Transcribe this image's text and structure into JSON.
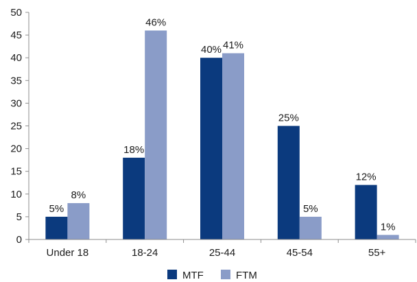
{
  "chart_data": {
    "type": "bar",
    "categories": [
      "Under 18",
      "18-24",
      "25-44",
      "45-54",
      "55+"
    ],
    "series": [
      {
        "name": "MTF",
        "values": [
          5,
          18,
          40,
          25,
          12
        ],
        "labels": [
          "5%",
          "18%",
          "40%",
          "25%",
          "12%"
        ],
        "color": "#0b3a7e"
      },
      {
        "name": "FTM",
        "values": [
          8,
          46,
          41,
          5,
          1
        ],
        "labels": [
          "8%",
          "46%",
          "41%",
          "5%",
          "1%"
        ],
        "color": "#8a9cc8"
      }
    ],
    "ylim": [
      0,
      50
    ],
    "yticks": [
      "0",
      "5",
      "10",
      "15",
      "20",
      "25",
      "30",
      "35",
      "40",
      "45",
      "50"
    ],
    "grid": false,
    "legend": "bottom-center",
    "title": "",
    "xlabel": "",
    "ylabel": ""
  }
}
